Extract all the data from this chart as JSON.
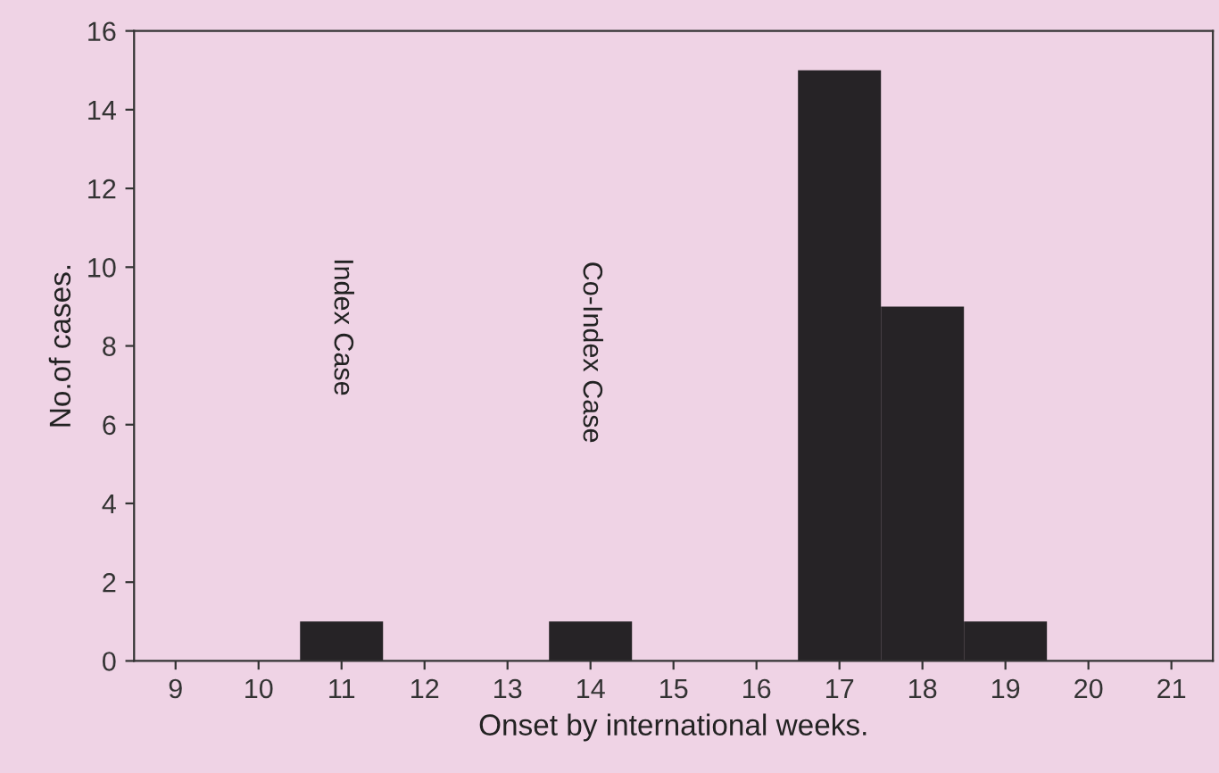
{
  "chart_data": {
    "type": "bar",
    "xlabel": "Onset by international weeks.",
    "ylabel": "No.of cases.",
    "categories": [
      "9",
      "10",
      "11",
      "12",
      "13",
      "14",
      "15",
      "16",
      "17",
      "18",
      "19",
      "20",
      "21"
    ],
    "values": [
      0,
      0,
      1,
      0,
      0,
      1,
      0,
      0,
      15,
      9,
      1,
      0,
      0
    ],
    "color": "#262326",
    "ylim": [
      0,
      16
    ],
    "yticks": [
      0,
      2,
      4,
      6,
      8,
      10,
      12,
      14,
      16
    ],
    "grid": false,
    "annotations": [
      "Index Case",
      "Co-Index Case"
    ]
  }
}
